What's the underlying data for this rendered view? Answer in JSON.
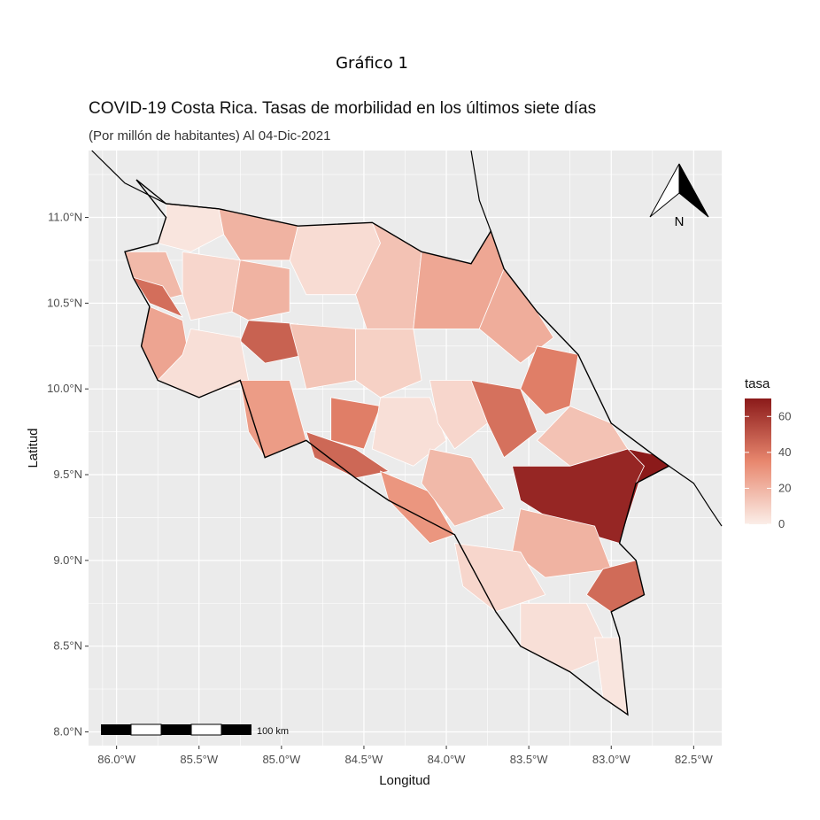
{
  "figure_caption": "Gráfico 1",
  "title": "COVID-19 Costa Rica. Tasas de morbilidad en los últimos siete días",
  "subtitle": "(Por millón de habitantes) Al 04-Dic-2021",
  "north_arrow_label": "N",
  "scale_bar_label": "100 km",
  "colors": {
    "panel_bg": "#ebebeb",
    "grid": "#ffffff",
    "scale_low": "#fbeee8",
    "scale_mid": "#e8876e",
    "scale_high": "#8b1a1a",
    "border": "#000000"
  },
  "chart_data": {
    "type": "choropleth",
    "xlabel": "Longitud",
    "ylabel": "Latitud",
    "xlim": [
      -86.17,
      -82.33
    ],
    "ylim": [
      7.92,
      11.39
    ],
    "x_ticks": [
      {
        "value": -86.0,
        "label": "86.0°W"
      },
      {
        "value": -85.5,
        "label": "85.5°W"
      },
      {
        "value": -85.0,
        "label": "85.0°W"
      },
      {
        "value": -84.5,
        "label": "84.5°W"
      },
      {
        "value": -84.0,
        "label": "84.0°W"
      },
      {
        "value": -83.5,
        "label": "83.5°W"
      },
      {
        "value": -83.0,
        "label": "83.0°W"
      },
      {
        "value": -82.5,
        "label": "82.5°W"
      }
    ],
    "y_ticks": [
      {
        "value": 8.0,
        "label": "8.0°N"
      },
      {
        "value": 8.5,
        "label": "8.5°N"
      },
      {
        "value": 9.0,
        "label": "9.0°N"
      },
      {
        "value": 9.5,
        "label": "9.5°N"
      },
      {
        "value": 10.0,
        "label": "10.0°N"
      },
      {
        "value": 10.5,
        "label": "10.5°N"
      },
      {
        "value": 11.0,
        "label": "11.0°N"
      }
    ],
    "legend": {
      "title": "tasa",
      "min": 0,
      "max": 70,
      "ticks": [
        0,
        20,
        40,
        60
      ],
      "placement": "right"
    },
    "regions": [
      {
        "tasa": 3,
        "coords": [
          [
            -85.7,
            11.08
          ],
          [
            -85.38,
            11.05
          ],
          [
            -85.35,
            10.9
          ],
          [
            -85.55,
            10.8
          ],
          [
            -85.75,
            10.85
          ],
          [
            -85.7,
            11.0
          ]
        ]
      },
      {
        "tasa": 20,
        "coords": [
          [
            -85.38,
            11.05
          ],
          [
            -84.9,
            10.95
          ],
          [
            -84.95,
            10.75
          ],
          [
            -85.25,
            10.75
          ],
          [
            -85.35,
            10.9
          ]
        ]
      },
      {
        "tasa": 6,
        "coords": [
          [
            -84.9,
            10.95
          ],
          [
            -84.45,
            10.97
          ],
          [
            -84.4,
            10.85
          ],
          [
            -84.55,
            10.55
          ],
          [
            -84.85,
            10.55
          ],
          [
            -84.95,
            10.75
          ]
        ]
      },
      {
        "tasa": 15,
        "coords": [
          [
            -84.45,
            10.97
          ],
          [
            -84.15,
            10.8
          ],
          [
            -84.2,
            10.35
          ],
          [
            -84.45,
            10.25
          ],
          [
            -84.55,
            10.55
          ],
          [
            -84.4,
            10.85
          ]
        ]
      },
      {
        "tasa": 24,
        "coords": [
          [
            -84.15,
            10.8
          ],
          [
            -83.85,
            10.73
          ],
          [
            -83.73,
            10.92
          ],
          [
            -83.65,
            10.7
          ],
          [
            -83.8,
            10.35
          ],
          [
            -84.2,
            10.35
          ]
        ]
      },
      {
        "tasa": 22,
        "coords": [
          [
            -83.8,
            10.35
          ],
          [
            -83.65,
            10.7
          ],
          [
            -83.45,
            10.45
          ],
          [
            -83.35,
            10.3
          ],
          [
            -83.55,
            10.15
          ]
        ]
      },
      {
        "tasa": 18,
        "coords": [
          [
            -85.95,
            10.8
          ],
          [
            -85.7,
            10.8
          ],
          [
            -85.6,
            10.55
          ],
          [
            -85.8,
            10.5
          ],
          [
            -85.9,
            10.65
          ]
        ]
      },
      {
        "tasa": 8,
        "coords": [
          [
            -85.6,
            10.8
          ],
          [
            -85.25,
            10.75
          ],
          [
            -85.3,
            10.45
          ],
          [
            -85.55,
            10.4
          ],
          [
            -85.6,
            10.55
          ]
        ]
      },
      {
        "tasa": 20,
        "coords": [
          [
            -85.25,
            10.75
          ],
          [
            -84.95,
            10.7
          ],
          [
            -84.95,
            10.45
          ],
          [
            -85.2,
            10.4
          ],
          [
            -85.3,
            10.45
          ]
        ]
      },
      {
        "tasa": 43,
        "coords": [
          [
            -85.9,
            10.65
          ],
          [
            -85.8,
            10.5
          ],
          [
            -85.6,
            10.42
          ],
          [
            -85.72,
            10.6
          ]
        ]
      },
      {
        "tasa": 25,
        "coords": [
          [
            -85.8,
            10.48
          ],
          [
            -85.6,
            10.4
          ],
          [
            -85.55,
            10.12
          ],
          [
            -85.75,
            10.05
          ],
          [
            -85.85,
            10.25
          ]
        ]
      },
      {
        "tasa": 47,
        "coords": [
          [
            -85.2,
            10.4
          ],
          [
            -84.9,
            10.38
          ],
          [
            -84.85,
            10.2
          ],
          [
            -85.1,
            10.15
          ],
          [
            -85.25,
            10.28
          ]
        ]
      },
      {
        "tasa": 5,
        "coords": [
          [
            -85.55,
            10.35
          ],
          [
            -85.25,
            10.3
          ],
          [
            -85.2,
            10.05
          ],
          [
            -85.5,
            9.95
          ],
          [
            -85.75,
            10.05
          ],
          [
            -85.6,
            10.2
          ]
        ]
      },
      {
        "tasa": 28,
        "coords": [
          [
            -85.25,
            10.05
          ],
          [
            -84.95,
            10.05
          ],
          [
            -84.85,
            9.7
          ],
          [
            -85.1,
            9.6
          ],
          [
            -85.2,
            9.75
          ]
        ]
      },
      {
        "tasa": 14,
        "coords": [
          [
            -84.95,
            10.38
          ],
          [
            -84.55,
            10.35
          ],
          [
            -84.55,
            10.05
          ],
          [
            -84.85,
            10.0
          ],
          [
            -84.9,
            10.2
          ]
        ]
      },
      {
        "tasa": 10,
        "coords": [
          [
            -84.55,
            10.35
          ],
          [
            -84.2,
            10.35
          ],
          [
            -84.15,
            10.05
          ],
          [
            -84.4,
            9.95
          ],
          [
            -84.55,
            10.05
          ]
        ]
      },
      {
        "tasa": 38,
        "coords": [
          [
            -84.7,
            9.95
          ],
          [
            -84.4,
            9.9
          ],
          [
            -84.5,
            9.65
          ],
          [
            -84.7,
            9.7
          ]
        ]
      },
      {
        "tasa": 45,
        "coords": [
          [
            -84.85,
            9.75
          ],
          [
            -84.55,
            9.65
          ],
          [
            -84.35,
            9.52
          ],
          [
            -84.55,
            9.48
          ],
          [
            -84.8,
            9.6
          ]
        ]
      },
      {
        "tasa": 30,
        "coords": [
          [
            -84.4,
            9.52
          ],
          [
            -84.1,
            9.4
          ],
          [
            -83.95,
            9.15
          ],
          [
            -84.1,
            9.1
          ],
          [
            -84.35,
            9.35
          ]
        ]
      },
      {
        "tasa": 5,
        "coords": [
          [
            -84.4,
            9.95
          ],
          [
            -84.1,
            9.95
          ],
          [
            -84.0,
            9.7
          ],
          [
            -84.2,
            9.55
          ],
          [
            -84.45,
            9.65
          ]
        ]
      },
      {
        "tasa": 8,
        "coords": [
          [
            -84.1,
            10.05
          ],
          [
            -83.85,
            10.05
          ],
          [
            -83.75,
            9.8
          ],
          [
            -83.95,
            9.65
          ],
          [
            -84.05,
            9.8
          ]
        ]
      },
      {
        "tasa": 18,
        "coords": [
          [
            -84.1,
            9.65
          ],
          [
            -83.85,
            9.6
          ],
          [
            -83.65,
            9.3
          ],
          [
            -83.95,
            9.2
          ],
          [
            -84.15,
            9.45
          ]
        ]
      },
      {
        "tasa": 42,
        "coords": [
          [
            -83.85,
            10.05
          ],
          [
            -83.55,
            10.0
          ],
          [
            -83.45,
            9.75
          ],
          [
            -83.65,
            9.6
          ],
          [
            -83.75,
            9.8
          ]
        ]
      },
      {
        "tasa": 38,
        "coords": [
          [
            -83.45,
            10.25
          ],
          [
            -83.2,
            10.2
          ],
          [
            -83.25,
            9.9
          ],
          [
            -83.4,
            9.85
          ],
          [
            -83.55,
            10.0
          ]
        ]
      },
      {
        "tasa": 15,
        "coords": [
          [
            -83.25,
            9.9
          ],
          [
            -83.0,
            9.8
          ],
          [
            -82.9,
            9.65
          ],
          [
            -83.25,
            9.55
          ],
          [
            -83.45,
            9.7
          ]
        ]
      },
      {
        "tasa": 66,
        "coords": [
          [
            -83.6,
            9.55
          ],
          [
            -83.25,
            9.55
          ],
          [
            -82.9,
            9.65
          ],
          [
            -82.8,
            9.55
          ],
          [
            -82.95,
            9.1
          ],
          [
            -83.3,
            9.2
          ],
          [
            -83.55,
            9.35
          ]
        ]
      },
      {
        "tasa": 70,
        "coords": [
          [
            -82.9,
            9.65
          ],
          [
            -82.75,
            9.62
          ],
          [
            -82.65,
            9.55
          ],
          [
            -82.85,
            9.45
          ],
          [
            -82.8,
            9.55
          ]
        ]
      },
      {
        "tasa": 20,
        "coords": [
          [
            -83.55,
            9.3
          ],
          [
            -83.1,
            9.2
          ],
          [
            -83.0,
            8.95
          ],
          [
            -83.4,
            8.9
          ],
          [
            -83.6,
            9.05
          ]
        ]
      },
      {
        "tasa": 44,
        "coords": [
          [
            -83.05,
            8.95
          ],
          [
            -82.85,
            9.0
          ],
          [
            -82.8,
            8.8
          ],
          [
            -83.0,
            8.7
          ],
          [
            -83.15,
            8.8
          ]
        ]
      },
      {
        "tasa": 8,
        "coords": [
          [
            -83.95,
            9.1
          ],
          [
            -83.55,
            9.05
          ],
          [
            -83.4,
            8.8
          ],
          [
            -83.7,
            8.7
          ],
          [
            -83.9,
            8.85
          ]
        ]
      },
      {
        "tasa": 5,
        "coords": [
          [
            -83.55,
            8.75
          ],
          [
            -83.15,
            8.75
          ],
          [
            -83.0,
            8.45
          ],
          [
            -83.25,
            8.35
          ],
          [
            -83.55,
            8.5
          ]
        ]
      },
      {
        "tasa": 3,
        "coords": [
          [
            -83.1,
            8.55
          ],
          [
            -82.95,
            8.55
          ],
          [
            -82.9,
            8.1
          ],
          [
            -83.05,
            8.2
          ]
        ]
      }
    ]
  }
}
